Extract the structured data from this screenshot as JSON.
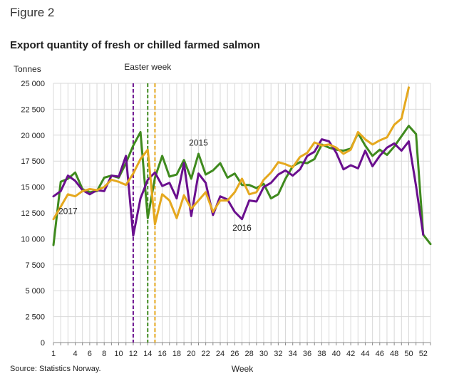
{
  "figure_label": "Figure 2",
  "source": "Source: Statistics Norway.",
  "chart_data": {
    "type": "line",
    "title": "Export quantity of fresh or chilled farmed salmon",
    "ylabel": "Tonnes",
    "xlabel": "Week",
    "ylim": [
      0,
      25000
    ],
    "yticks": [
      0,
      2500,
      5000,
      7500,
      10000,
      12500,
      15000,
      17500,
      20000,
      22500,
      25000
    ],
    "ytick_labels": [
      "0",
      "2 500",
      "5 000",
      "7 500",
      "10 000",
      "12 500",
      "15 000",
      "17 500",
      "20 000",
      "22 500",
      "25 000"
    ],
    "xlim": [
      1,
      53
    ],
    "xticks": [
      1,
      4,
      6,
      8,
      10,
      12,
      14,
      16,
      18,
      20,
      22,
      24,
      26,
      28,
      30,
      32,
      34,
      36,
      38,
      40,
      42,
      44,
      46,
      48,
      50,
      52
    ],
    "grid": "vertical lines at every week, horizontal lines at every y tick",
    "annotations": [
      {
        "text": "Easter week",
        "x": 14,
        "y": 26300
      },
      {
        "text": "2015",
        "x": 21,
        "y": 19000
      },
      {
        "text": "2017",
        "x": 3,
        "y": 12400
      },
      {
        "text": "2016",
        "x": 27,
        "y": 10800
      }
    ],
    "vlines": [
      {
        "week": 12,
        "color": "#6a0f8e",
        "series": "2016"
      },
      {
        "week": 14,
        "color": "#3f8a1e",
        "series": "2015"
      },
      {
        "week": 15,
        "color": "#e5a81e",
        "series": "2017"
      }
    ],
    "series": [
      {
        "name": "2015",
        "color": "#3f8a1e",
        "x": [
          1,
          2,
          3,
          4,
          5,
          6,
          7,
          8,
          9,
          10,
          11,
          12,
          13,
          14,
          15,
          16,
          17,
          18,
          19,
          20,
          21,
          22,
          23,
          24,
          25,
          26,
          27,
          28,
          29,
          30,
          31,
          32,
          33,
          34,
          35,
          36,
          37,
          38,
          39,
          40,
          41,
          42,
          43,
          44,
          45,
          46,
          47,
          48,
          49,
          50,
          51,
          52,
          53
        ],
        "values": [
          9400,
          15500,
          15800,
          16400,
          14800,
          14500,
          14600,
          15900,
          16100,
          15900,
          17300,
          19000,
          20300,
          12000,
          15900,
          18000,
          16000,
          16200,
          17600,
          15800,
          18200,
          16200,
          16600,
          17300,
          15900,
          16300,
          15200,
          15200,
          14900,
          15300,
          13900,
          14300,
          15800,
          17000,
          17400,
          17300,
          17700,
          19100,
          18800,
          18600,
          18500,
          18700,
          20200,
          19000,
          18000,
          18600,
          18100,
          18900,
          19900,
          20900,
          20100,
          10400,
          9500
        ]
      },
      {
        "name": "2016",
        "color": "#6a0f8e",
        "x": [
          1,
          2,
          3,
          4,
          5,
          6,
          7,
          8,
          9,
          10,
          11,
          12,
          13,
          14,
          15,
          16,
          17,
          18,
          19,
          20,
          21,
          22,
          23,
          24,
          25,
          26,
          27,
          28,
          29,
          30,
          31,
          32,
          33,
          34,
          35,
          36,
          37,
          38,
          39,
          40,
          41,
          42,
          43,
          44,
          45,
          46,
          47,
          48,
          49,
          50,
          51,
          52
        ],
        "values": [
          14100,
          14600,
          16100,
          15600,
          14700,
          14300,
          14700,
          14600,
          16100,
          16000,
          18000,
          10300,
          13900,
          15700,
          16400,
          15100,
          15400,
          13900,
          17300,
          12200,
          16300,
          15400,
          12300,
          14100,
          13800,
          12600,
          11900,
          13700,
          13600,
          15000,
          15400,
          16200,
          16600,
          16100,
          16700,
          18000,
          18400,
          19600,
          19400,
          18300,
          16700,
          17100,
          16800,
          18500,
          17000,
          18000,
          18800,
          19200,
          18500,
          19400,
          15100,
          10400
        ]
      },
      {
        "name": "2017",
        "color": "#e5a81e",
        "x": [
          1,
          2,
          3,
          4,
          5,
          6,
          7,
          8,
          9,
          10,
          11,
          12,
          13,
          14,
          15,
          16,
          17,
          18,
          19,
          20,
          21,
          22,
          23,
          24,
          25,
          26,
          27,
          28,
          29,
          30,
          31,
          32,
          33,
          34,
          35,
          36,
          37,
          38,
          39,
          40,
          41,
          42,
          43,
          44,
          45,
          46,
          47,
          48,
          49,
          50
        ],
        "values": [
          11900,
          13100,
          14300,
          14100,
          14600,
          14800,
          14700,
          15000,
          15700,
          15500,
          15200,
          16300,
          17700,
          18600,
          11400,
          14300,
          13700,
          12000,
          14200,
          12900,
          13700,
          14500,
          12600,
          13700,
          13700,
          14500,
          15800,
          14300,
          14500,
          15700,
          16400,
          17400,
          17200,
          16900,
          17900,
          18300,
          19300,
          19000,
          19100,
          18800,
          18200,
          18600,
          20300,
          19600,
          19100,
          19500,
          19800,
          21000,
          21600,
          24600
        ]
      }
    ]
  }
}
